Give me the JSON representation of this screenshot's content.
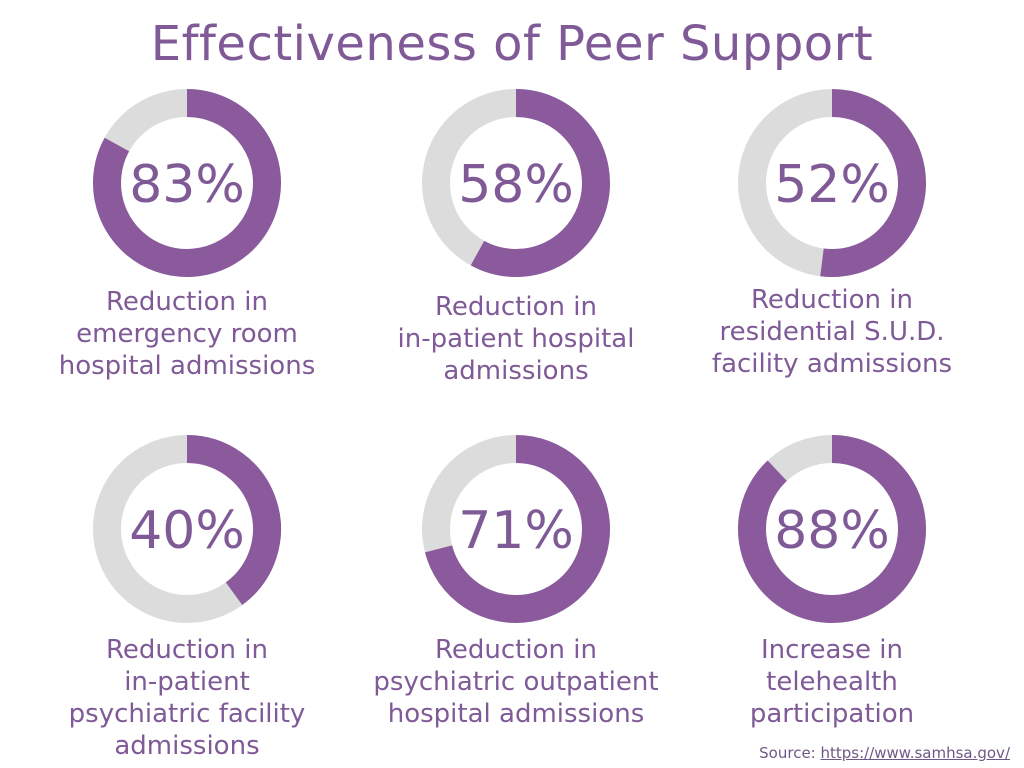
{
  "title": "Effectiveness of Peer Support",
  "source": {
    "label": "Source: ",
    "url": "https://www.samhsa.gov/"
  },
  "colors": {
    "accent": "#8a5a9c",
    "track": "#dcdcdc",
    "text": "#7f5a97"
  },
  "chart_data": {
    "type": "pie",
    "variant": "donut",
    "title": "Effectiveness of Peer Support",
    "items": [
      {
        "value": 83,
        "label": "83%",
        "caption": [
          "Reduction in",
          "emergency room",
          "hospital admissions"
        ]
      },
      {
        "value": 58,
        "label": "58%",
        "caption": [
          "Reduction in",
          "in-patient hospital",
          "admissions"
        ]
      },
      {
        "value": 52,
        "label": "52%",
        "caption": [
          "Reduction in",
          "residential S.U.D.",
          "facility admissions"
        ]
      },
      {
        "value": 40,
        "label": "40%",
        "caption": [
          "Reduction in",
          "in-patient",
          "psychiatric facility",
          "admissions"
        ]
      },
      {
        "value": 71,
        "label": "71%",
        "caption": [
          "Reduction in",
          "psychiatric outpatient",
          "hospital admissions"
        ]
      },
      {
        "value": 88,
        "label": "88%",
        "caption": [
          "Increase in",
          "telehealth",
          "participation"
        ]
      }
    ]
  }
}
